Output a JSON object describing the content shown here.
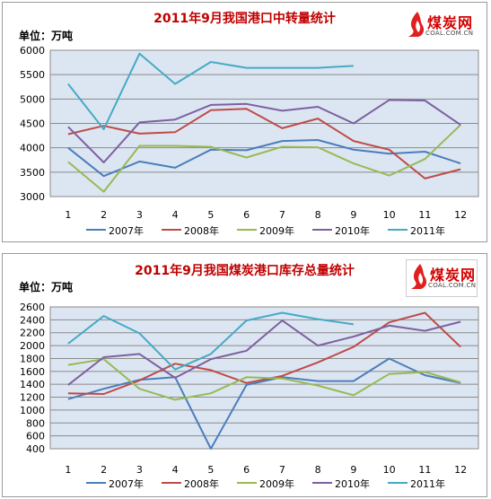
{
  "chart_data": [
    {
      "type": "line",
      "title": "2011年9月我国港口中转量统计",
      "unit_label": "单位：万吨",
      "brand": {
        "name": "煤炭网",
        "url": "COAL.COM.CN"
      },
      "categories": [
        "1",
        "2",
        "3",
        "4",
        "5",
        "6",
        "7",
        "8",
        "9",
        "10",
        "11",
        "12"
      ],
      "ylim": [
        3000,
        6000
      ],
      "yticks": [
        3000,
        3500,
        4000,
        4500,
        5000,
        5500,
        6000
      ],
      "grid": true,
      "legend_position": "bottom",
      "series": [
        {
          "name": "2007年",
          "color": "#4a7ebb",
          "values": [
            4000,
            3420,
            3720,
            3590,
            3960,
            3950,
            4140,
            4160,
            3960,
            3880,
            3920,
            3680
          ]
        },
        {
          "name": "2008年",
          "color": "#be4b48",
          "values": [
            4280,
            4450,
            4290,
            4320,
            4770,
            4800,
            4400,
            4600,
            4140,
            3960,
            3370,
            3560
          ]
        },
        {
          "name": "2009年",
          "color": "#98b954",
          "values": [
            3710,
            3100,
            4040,
            4040,
            4020,
            3800,
            4020,
            4010,
            3680,
            3430,
            3770,
            4470
          ]
        },
        {
          "name": "2010年",
          "color": "#7d60a0",
          "values": [
            4430,
            3700,
            4520,
            4580,
            4880,
            4900,
            4760,
            4840,
            4500,
            4980,
            4970,
            4470
          ]
        },
        {
          "name": "2011年",
          "color": "#46aac5",
          "values": [
            5310,
            4380,
            5930,
            5310,
            5760,
            5640,
            5640,
            5640,
            5680,
            null,
            null,
            null
          ]
        }
      ]
    },
    {
      "type": "line",
      "title": "2011年9月我国煤炭港口库存总量统计",
      "unit_label": "单位：万吨",
      "brand": {
        "name": "煤炭网",
        "url": "COAL.COM.CN"
      },
      "categories": [
        "1",
        "2",
        "3",
        "4",
        "5",
        "6",
        "7",
        "8",
        "9",
        "10",
        "11",
        "12"
      ],
      "ylim": [
        400,
        2600
      ],
      "yticks": [
        400,
        600,
        800,
        1000,
        1200,
        1400,
        1600,
        1800,
        2000,
        2200,
        2400,
        2600
      ],
      "grid": true,
      "legend_position": "bottom",
      "series": [
        {
          "name": "2007年",
          "color": "#4a7ebb",
          "values": [
            1170,
            1330,
            1470,
            1510,
            400,
            1390,
            1510,
            1450,
            1450,
            1800,
            1540,
            1420
          ]
        },
        {
          "name": "2008年",
          "color": "#be4b48",
          "values": [
            1260,
            1250,
            1460,
            1720,
            1620,
            1420,
            1530,
            1740,
            1980,
            2360,
            2510,
            1980
          ]
        },
        {
          "name": "2009年",
          "color": "#98b954",
          "values": [
            1700,
            1790,
            1330,
            1160,
            1260,
            1510,
            1490,
            1380,
            1230,
            1560,
            1590,
            1430
          ]
        },
        {
          "name": "2010年",
          "color": "#7d60a0",
          "values": [
            1390,
            1820,
            1870,
            1500,
            1790,
            1920,
            2390,
            2000,
            2140,
            2310,
            2230,
            2370
          ]
        },
        {
          "name": "2011年",
          "color": "#46aac5",
          "values": [
            2030,
            2460,
            2190,
            1630,
            1870,
            2390,
            2510,
            2410,
            2330,
            null,
            null,
            null
          ]
        }
      ]
    }
  ]
}
